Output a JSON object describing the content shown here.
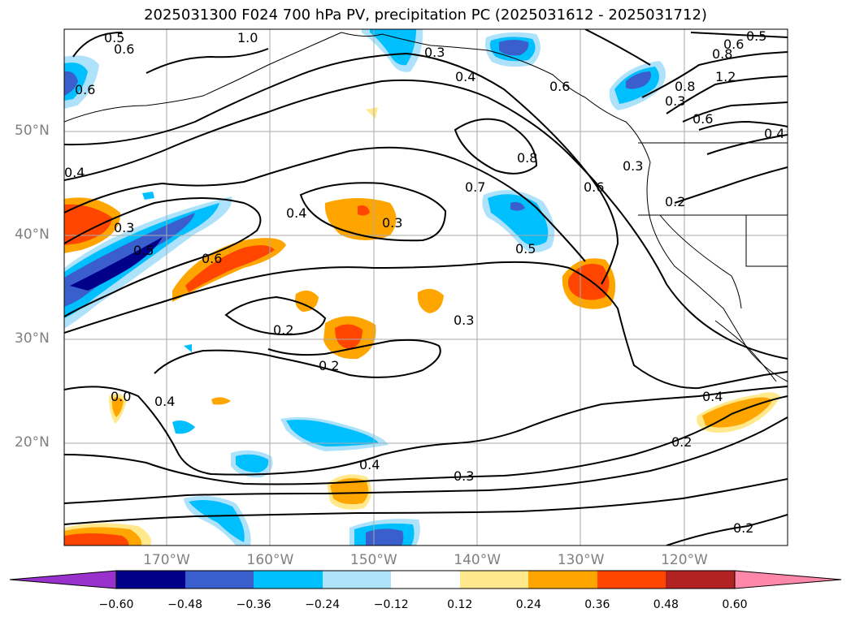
{
  "title": "2025031300 F024 700 hPa PV, precipitation PC (2025031612 - 2025031712)",
  "map": {
    "lat_labels": [
      {
        "label": "50°N",
        "lat": 50
      },
      {
        "label": "40°N",
        "lat": 40
      },
      {
        "label": "30°N",
        "lat": 30
      },
      {
        "label": "20°N",
        "lat": 20
      }
    ],
    "lon_labels": [
      {
        "label": "170°W",
        "lon": -170
      },
      {
        "label": "160°W",
        "lon": -160
      },
      {
        "label": "150°W",
        "lon": -150
      },
      {
        "label": "140°W",
        "lon": -140
      },
      {
        "label": "130°W",
        "lon": -130
      },
      {
        "label": "120°W",
        "lon": -120
      }
    ],
    "contour_labels": [
      "0.5",
      "1.0",
      "0.6",
      "0.6",
      "0.3",
      "0.4",
      "0.6",
      "0.6",
      "0.5",
      "0.8",
      "1.2",
      "0.8",
      "0.3",
      "0.6",
      "0.4",
      "0.4",
      "0.8",
      "0.7",
      "0.6",
      "0.3",
      "0.2",
      "0.4",
      "0.3",
      "0.3",
      "0.5",
      "0.6",
      "0.5",
      "0.2",
      "0.3",
      "0.2",
      "0.4",
      "0.0",
      "0.4",
      "0.3",
      "0.4",
      "0.2",
      "0.2"
    ]
  },
  "colorbar": {
    "ticks": [
      "−0.60",
      "−0.48",
      "−0.36",
      "−0.24",
      "−0.12",
      "0.12",
      "0.24",
      "0.36",
      "0.48",
      "0.60"
    ],
    "colors": [
      "#9932CC",
      "#00008B",
      "#3A5FCD",
      "#00BFFF",
      "#ADE2FA",
      "#FFFFFF",
      "#FFE98C",
      "#FFA500",
      "#FF4500",
      "#B22222",
      "#FF88AA"
    ]
  }
}
